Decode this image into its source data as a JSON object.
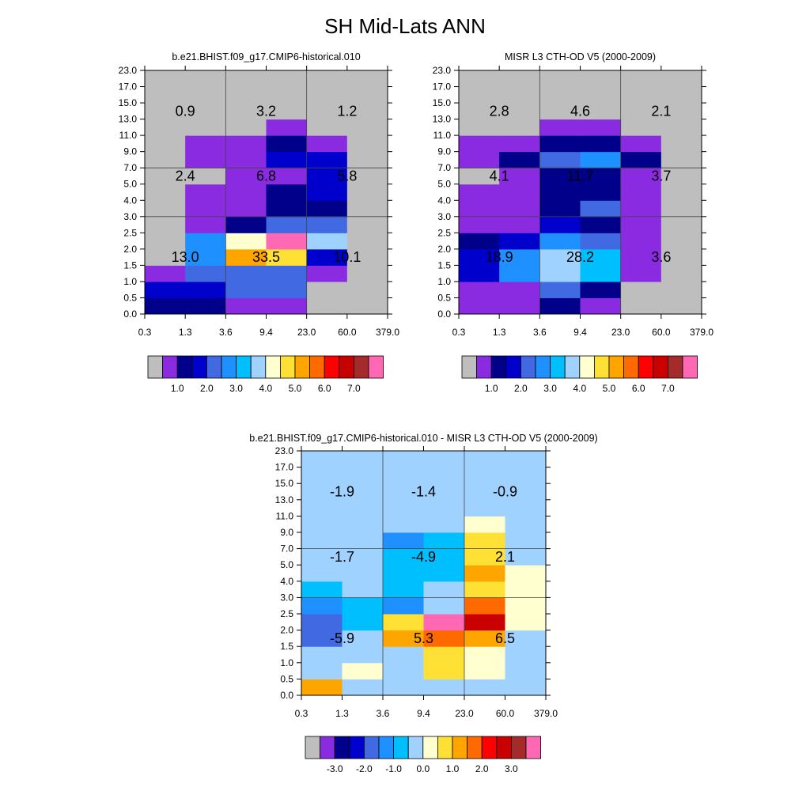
{
  "figure": {
    "title": "SH Mid-Lats ANN"
  },
  "colors": {
    "scale": [
      "#bebebe",
      "#8a2be2",
      "#00008b",
      "#0000cd",
      "#4169e1",
      "#1e90ff",
      "#00bfff",
      "#a0d2ff",
      "#ffffd0",
      "#ffe135",
      "#ffa500",
      "#ff6a00",
      "#ff0000",
      "#c80000",
      "#a52a2a",
      "#ff69b4"
    ],
    "diff_scale": [
      "#bebebe",
      "#8a2be2",
      "#00008b",
      "#0000cd",
      "#4169e1",
      "#1e90ff",
      "#00bfff",
      "#a0d2ff",
      "#ffffd0",
      "#ffe135",
      "#ffa500",
      "#ff6a00",
      "#ff0000",
      "#c80000",
      "#a52a2a",
      "#ff69b4"
    ]
  },
  "chart_data": [
    {
      "type": "heatmap",
      "title": "b.e21.BHIST.f09_g17.CMIP6-historical.010",
      "x_ticks": [
        "0.3",
        "1.3",
        "3.6",
        "9.4",
        "23.0",
        "60.0",
        "379.0"
      ],
      "y_ticks": [
        "0.0",
        "0.5",
        "1.0",
        "1.5",
        "2.0",
        "2.5",
        "3.0",
        "4.0",
        "5.0",
        "7.0",
        "9.0",
        "11.0",
        "13.0",
        "15.0",
        "17.0",
        "23.0"
      ],
      "cells_row_bottom_to_top": [
        [
          2,
          2,
          1,
          1,
          0,
          0
        ],
        [
          3,
          3,
          4,
          4,
          0,
          0
        ],
        [
          1,
          4,
          4,
          4,
          1,
          0
        ],
        [
          0,
          5,
          10,
          9,
          3,
          0
        ],
        [
          0,
          5,
          8,
          15,
          7,
          0
        ],
        [
          0,
          1,
          2,
          4,
          4,
          0
        ],
        [
          0,
          1,
          1,
          2,
          2,
          0
        ],
        [
          0,
          1,
          1,
          2,
          3,
          0
        ],
        [
          0,
          0,
          1,
          1,
          3,
          0
        ],
        [
          0,
          1,
          1,
          3,
          3,
          0
        ],
        [
          0,
          1,
          1,
          2,
          1,
          0
        ],
        [
          0,
          0,
          0,
          1,
          0,
          0
        ],
        [
          0,
          0,
          0,
          0,
          0,
          0
        ],
        [
          0,
          0,
          0,
          0,
          0,
          0
        ],
        [
          0,
          0,
          0,
          0,
          0,
          0
        ]
      ],
      "totals": [
        {
          "label": "0.9",
          "col": 0,
          "row": 12
        },
        {
          "label": "3.2",
          "col": 1,
          "row": 12
        },
        {
          "label": "1.2",
          "col": 2,
          "row": 12
        },
        {
          "label": "2.4",
          "col": 0,
          "row": 8
        },
        {
          "label": "6.8",
          "col": 1,
          "row": 8
        },
        {
          "label": "5.8",
          "col": 2,
          "row": 8
        },
        {
          "label": "13.0",
          "col": 0,
          "row": 3
        },
        {
          "label": "33.5",
          "col": 1,
          "row": 3
        },
        {
          "label": "10.1",
          "col": 2,
          "row": 3
        }
      ],
      "colorbar_labels": [
        "1.0",
        "2.0",
        "3.0",
        "4.0",
        "5.0",
        "6.0",
        "7.0"
      ]
    },
    {
      "type": "heatmap",
      "title": "MISR L3 CTH-OD V5 (2000-2009)",
      "x_ticks": [
        "0.3",
        "1.3",
        "3.6",
        "9.4",
        "23.0",
        "60.0",
        "379.0"
      ],
      "y_ticks": [
        "0.0",
        "0.5",
        "1.0",
        "1.5",
        "2.0",
        "2.5",
        "3.0",
        "4.0",
        "5.0",
        "7.0",
        "9.0",
        "11.0",
        "13.0",
        "15.0",
        "17.0",
        "23.0"
      ],
      "cells_row_bottom_to_top": [
        [
          1,
          1,
          2,
          1,
          0,
          0
        ],
        [
          1,
          1,
          4,
          2,
          0,
          0
        ],
        [
          3,
          5,
          7,
          6,
          1,
          0
        ],
        [
          3,
          5,
          7,
          6,
          1,
          0
        ],
        [
          2,
          3,
          5,
          4,
          1,
          0
        ],
        [
          1,
          1,
          3,
          2,
          1,
          0
        ],
        [
          1,
          1,
          2,
          4,
          1,
          0
        ],
        [
          1,
          1,
          2,
          2,
          1,
          0
        ],
        [
          0,
          1,
          2,
          2,
          1,
          0
        ],
        [
          1,
          2,
          4,
          5,
          2,
          0
        ],
        [
          1,
          1,
          2,
          2,
          1,
          0
        ],
        [
          0,
          0,
          1,
          1,
          0,
          0
        ],
        [
          0,
          0,
          0,
          0,
          0,
          0
        ],
        [
          0,
          0,
          0,
          0,
          0,
          0
        ],
        [
          0,
          0,
          0,
          0,
          0,
          0
        ]
      ],
      "totals": [
        {
          "label": "2.8",
          "col": 0,
          "row": 12
        },
        {
          "label": "4.6",
          "col": 1,
          "row": 12
        },
        {
          "label": "2.1",
          "col": 2,
          "row": 12
        },
        {
          "label": "4.1",
          "col": 0,
          "row": 8
        },
        {
          "label": "11.7",
          "col": 1,
          "row": 8
        },
        {
          "label": "3.7",
          "col": 2,
          "row": 8
        },
        {
          "label": "18.9",
          "col": 0,
          "row": 3
        },
        {
          "label": "28.2",
          "col": 1,
          "row": 3
        },
        {
          "label": "3.6",
          "col": 2,
          "row": 3
        }
      ],
      "colorbar_labels": [
        "1.0",
        "2.0",
        "3.0",
        "4.0",
        "5.0",
        "6.0",
        "7.0"
      ]
    },
    {
      "type": "heatmap",
      "title": "b.e21.BHIST.f09_g17.CMIP6-historical.010 - MISR L3 CTH-OD V5 (2000-2009)",
      "x_ticks": [
        "0.3",
        "1.3",
        "3.6",
        "9.4",
        "23.0",
        "60.0",
        "379.0"
      ],
      "y_ticks": [
        "0.0",
        "0.5",
        "1.0",
        "1.5",
        "2.0",
        "2.5",
        "3.0",
        "4.0",
        "5.0",
        "7.0",
        "9.0",
        "11.0",
        "13.0",
        "15.0",
        "17.0",
        "23.0"
      ],
      "cells_row_bottom_to_top": [
        [
          10,
          7,
          7,
          7,
          7,
          7
        ],
        [
          7,
          8,
          7,
          9,
          8,
          7
        ],
        [
          7,
          7,
          7,
          9,
          8,
          7
        ],
        [
          4,
          7,
          10,
          11,
          10,
          7
        ],
        [
          4,
          6,
          9,
          15,
          13,
          8
        ],
        [
          5,
          6,
          5,
          7,
          11,
          8
        ],
        [
          6,
          7,
          6,
          7,
          9,
          8
        ],
        [
          7,
          7,
          6,
          6,
          10,
          8
        ],
        [
          7,
          7,
          6,
          6,
          9,
          7
        ],
        [
          7,
          7,
          5,
          6,
          9,
          7
        ],
        [
          7,
          7,
          7,
          7,
          8,
          7
        ],
        [
          7,
          7,
          7,
          7,
          7,
          7
        ],
        [
          7,
          7,
          7,
          7,
          7,
          7
        ],
        [
          7,
          7,
          7,
          7,
          7,
          7
        ],
        [
          7,
          7,
          7,
          7,
          7,
          7
        ]
      ],
      "totals": [
        {
          "label": "-1.9",
          "col": 0,
          "row": 12
        },
        {
          "label": "-1.4",
          "col": 1,
          "row": 12
        },
        {
          "label": "-0.9",
          "col": 2,
          "row": 12
        },
        {
          "label": "-1.7",
          "col": 0,
          "row": 8
        },
        {
          "label": "-4.9",
          "col": 1,
          "row": 8
        },
        {
          "label": "2.1",
          "col": 2,
          "row": 8
        },
        {
          "label": "-5.9",
          "col": 0,
          "row": 3
        },
        {
          "label": "5.3",
          "col": 1,
          "row": 3
        },
        {
          "label": "6.5",
          "col": 2,
          "row": 3
        }
      ],
      "colorbar_labels": [
        "-3.0",
        "-2.0",
        "-1.0",
        "0.0",
        "1.0",
        "2.0",
        "3.0"
      ]
    }
  ]
}
